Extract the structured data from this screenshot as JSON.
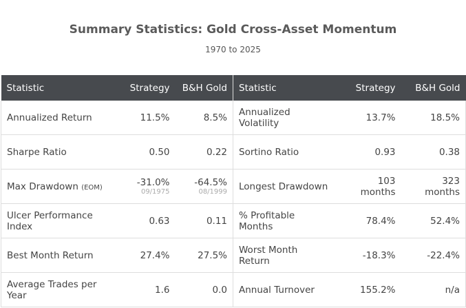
{
  "header": {
    "title": "Summary Statistics: Gold Cross-Asset Momentum",
    "subtitle": "1970 to 2025"
  },
  "table": {
    "columns": [
      "Statistic",
      "Strategy",
      "B&H Gold",
      "Statistic",
      "Strategy",
      "B&H Gold"
    ],
    "rows": [
      [
        "Annualized Return",
        "11.5%",
        "8.5%",
        "Annualized Volatility",
        "13.7%",
        "18.5%"
      ],
      [
        "Sharpe Ratio",
        "0.50",
        "0.22",
        "Sortino Ratio",
        "0.93",
        "0.38"
      ],
      [
        {
          "text": "Max Drawdown",
          "sub": "(EOM)"
        },
        {
          "text": "-31.0%",
          "sub": "09/1975"
        },
        {
          "text": "-64.5%",
          "sub": "08/1999"
        },
        "Longest Drawdown",
        "103 months",
        "323 months"
      ],
      [
        "Ulcer Performance Index",
        "0.63",
        "0.11",
        "% Profitable Months",
        "78.4%",
        "52.4%"
      ],
      [
        "Best Month Return",
        "27.4%",
        "27.5%",
        "Worst Month Return",
        "-18.3%",
        "-22.4%"
      ],
      [
        "Average Trades per Year",
        "1.6",
        "0.0",
        "Annual Turnover",
        "155.2%",
        "n/a"
      ]
    ]
  }
}
